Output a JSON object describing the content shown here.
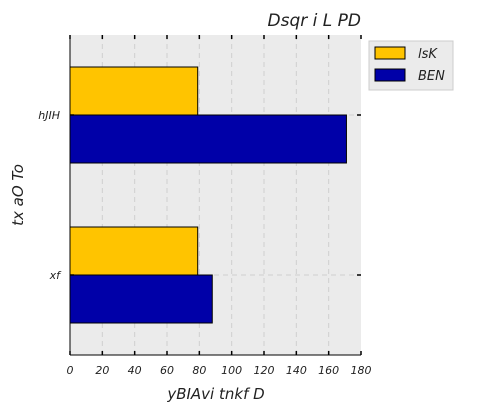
{
  "chart_data": {
    "type": "bar",
    "orientation": "horizontal",
    "title": "Dsqr  i  L PD",
    "xlabel": "yBIAvi tnkf  D",
    "ylabel": "tx aO To",
    "categories": [
      "hJIH",
      "xf"
    ],
    "series": [
      {
        "name": "lsK",
        "values": [
          79,
          79
        ],
        "color": "#FFC400"
      },
      {
        "name": "BEN",
        "values": [
          171,
          88
        ],
        "color": "#0000A8"
      }
    ],
    "xlim": [
      0,
      180
    ],
    "xticks": [
      "0",
      "20",
      "40",
      "60",
      "80",
      "100",
      "120",
      "140",
      "160",
      "180"
    ],
    "grid": true,
    "legend_position": "top-right (outside plot)",
    "colors": {
      "background": "#EBEBEB",
      "grid": "#CFCFCF"
    }
  }
}
